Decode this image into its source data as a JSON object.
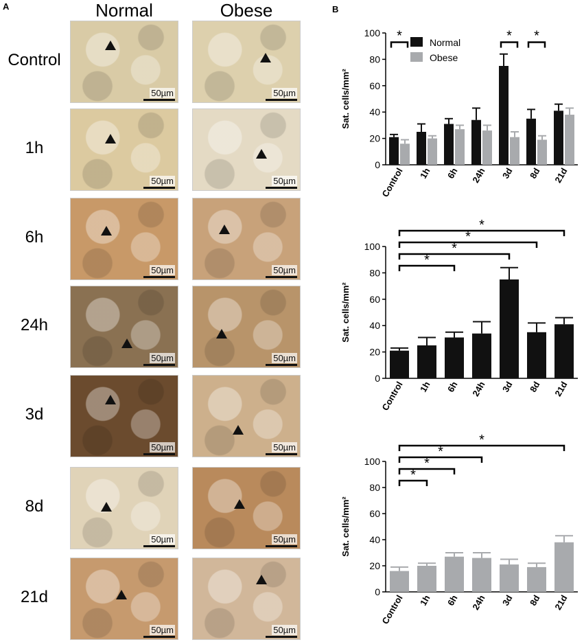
{
  "panel_a": {
    "letter": "A",
    "col_headers": [
      "Normal",
      "Obese"
    ],
    "row_labels": [
      "Control",
      "1h",
      "6h",
      "24h",
      "3d",
      "8d",
      "21d"
    ],
    "scale_bar_label": "50µm",
    "tile_colors": {
      "normal": [
        "#d9cba6",
        "#dccaa0",
        "#c89968",
        "#8a7152",
        "#6b4b2e",
        "#e0d3b8",
        "#c69a6e"
      ],
      "obese": [
        "#ddd0ad",
        "#e4dac4",
        "#c8a27a",
        "#b8946a",
        "#cdb08c",
        "#b98a5c",
        "#d1b79a"
      ]
    }
  },
  "panel_b": {
    "letter": "B"
  },
  "chart_data": [
    {
      "type": "bar",
      "categories": [
        "Control",
        "1h",
        "6h",
        "24h",
        "3d",
        "8d",
        "21d"
      ],
      "series": [
        {
          "name": "Normal",
          "color": "#111111",
          "values": [
            21,
            25,
            31,
            34,
            75,
            35,
            41
          ],
          "errors": [
            2,
            6,
            4,
            9,
            9,
            7,
            5
          ]
        },
        {
          "name": "Obese",
          "color": "#a8aaad",
          "values": [
            16,
            20,
            27,
            26,
            21,
            19,
            38
          ],
          "errors": [
            3,
            2,
            3,
            4,
            4,
            3,
            5
          ]
        }
      ],
      "ylabel": "Sat. cells/mm²",
      "ylim": [
        0,
        100
      ],
      "yticks": [
        0,
        20,
        40,
        60,
        80,
        100
      ],
      "legend": "top-center",
      "significance": [
        {
          "label": "*",
          "category": "Control"
        },
        {
          "label": "*",
          "category": "3d"
        },
        {
          "label": "*",
          "category": "8d"
        }
      ]
    },
    {
      "type": "bar",
      "categories": [
        "Control",
        "1h",
        "6h",
        "24h",
        "3d",
        "8d",
        "21d"
      ],
      "series": [
        {
          "color": "#111111",
          "values": [
            21,
            25,
            31,
            34,
            75,
            35,
            41
          ],
          "errors": [
            2,
            6,
            4,
            9,
            9,
            7,
            5
          ]
        }
      ],
      "ylabel": "Sat. cells/mm²",
      "ylim": [
        0,
        100
      ],
      "yticks": [
        0,
        20,
        40,
        60,
        80,
        100
      ],
      "significance": [
        {
          "label": "*",
          "from": "Control",
          "to": "6h"
        },
        {
          "label": "*",
          "from": "Control",
          "to": "3d"
        },
        {
          "label": "*",
          "from": "Control",
          "to": "8d"
        },
        {
          "label": "*",
          "from": "Control",
          "to": "21d"
        }
      ]
    },
    {
      "type": "bar",
      "categories": [
        "Control",
        "1h",
        "6h",
        "24h",
        "3d",
        "8d",
        "21d"
      ],
      "series": [
        {
          "color": "#a8aaad",
          "values": [
            16,
            20,
            27,
            26,
            21,
            19,
            38
          ],
          "errors": [
            3,
            2,
            3,
            4,
            4,
            3,
            5
          ]
        }
      ],
      "ylabel": "Sat. cells/mm²",
      "ylim": [
        0,
        100
      ],
      "yticks": [
        0,
        20,
        40,
        60,
        80,
        100
      ],
      "significance": [
        {
          "label": "*",
          "from": "Control",
          "to": "1h"
        },
        {
          "label": "*",
          "from": "Control",
          "to": "6h"
        },
        {
          "label": "*",
          "from": "Control",
          "to": "24h"
        },
        {
          "label": "*",
          "from": "Control",
          "to": "21d"
        }
      ]
    }
  ]
}
